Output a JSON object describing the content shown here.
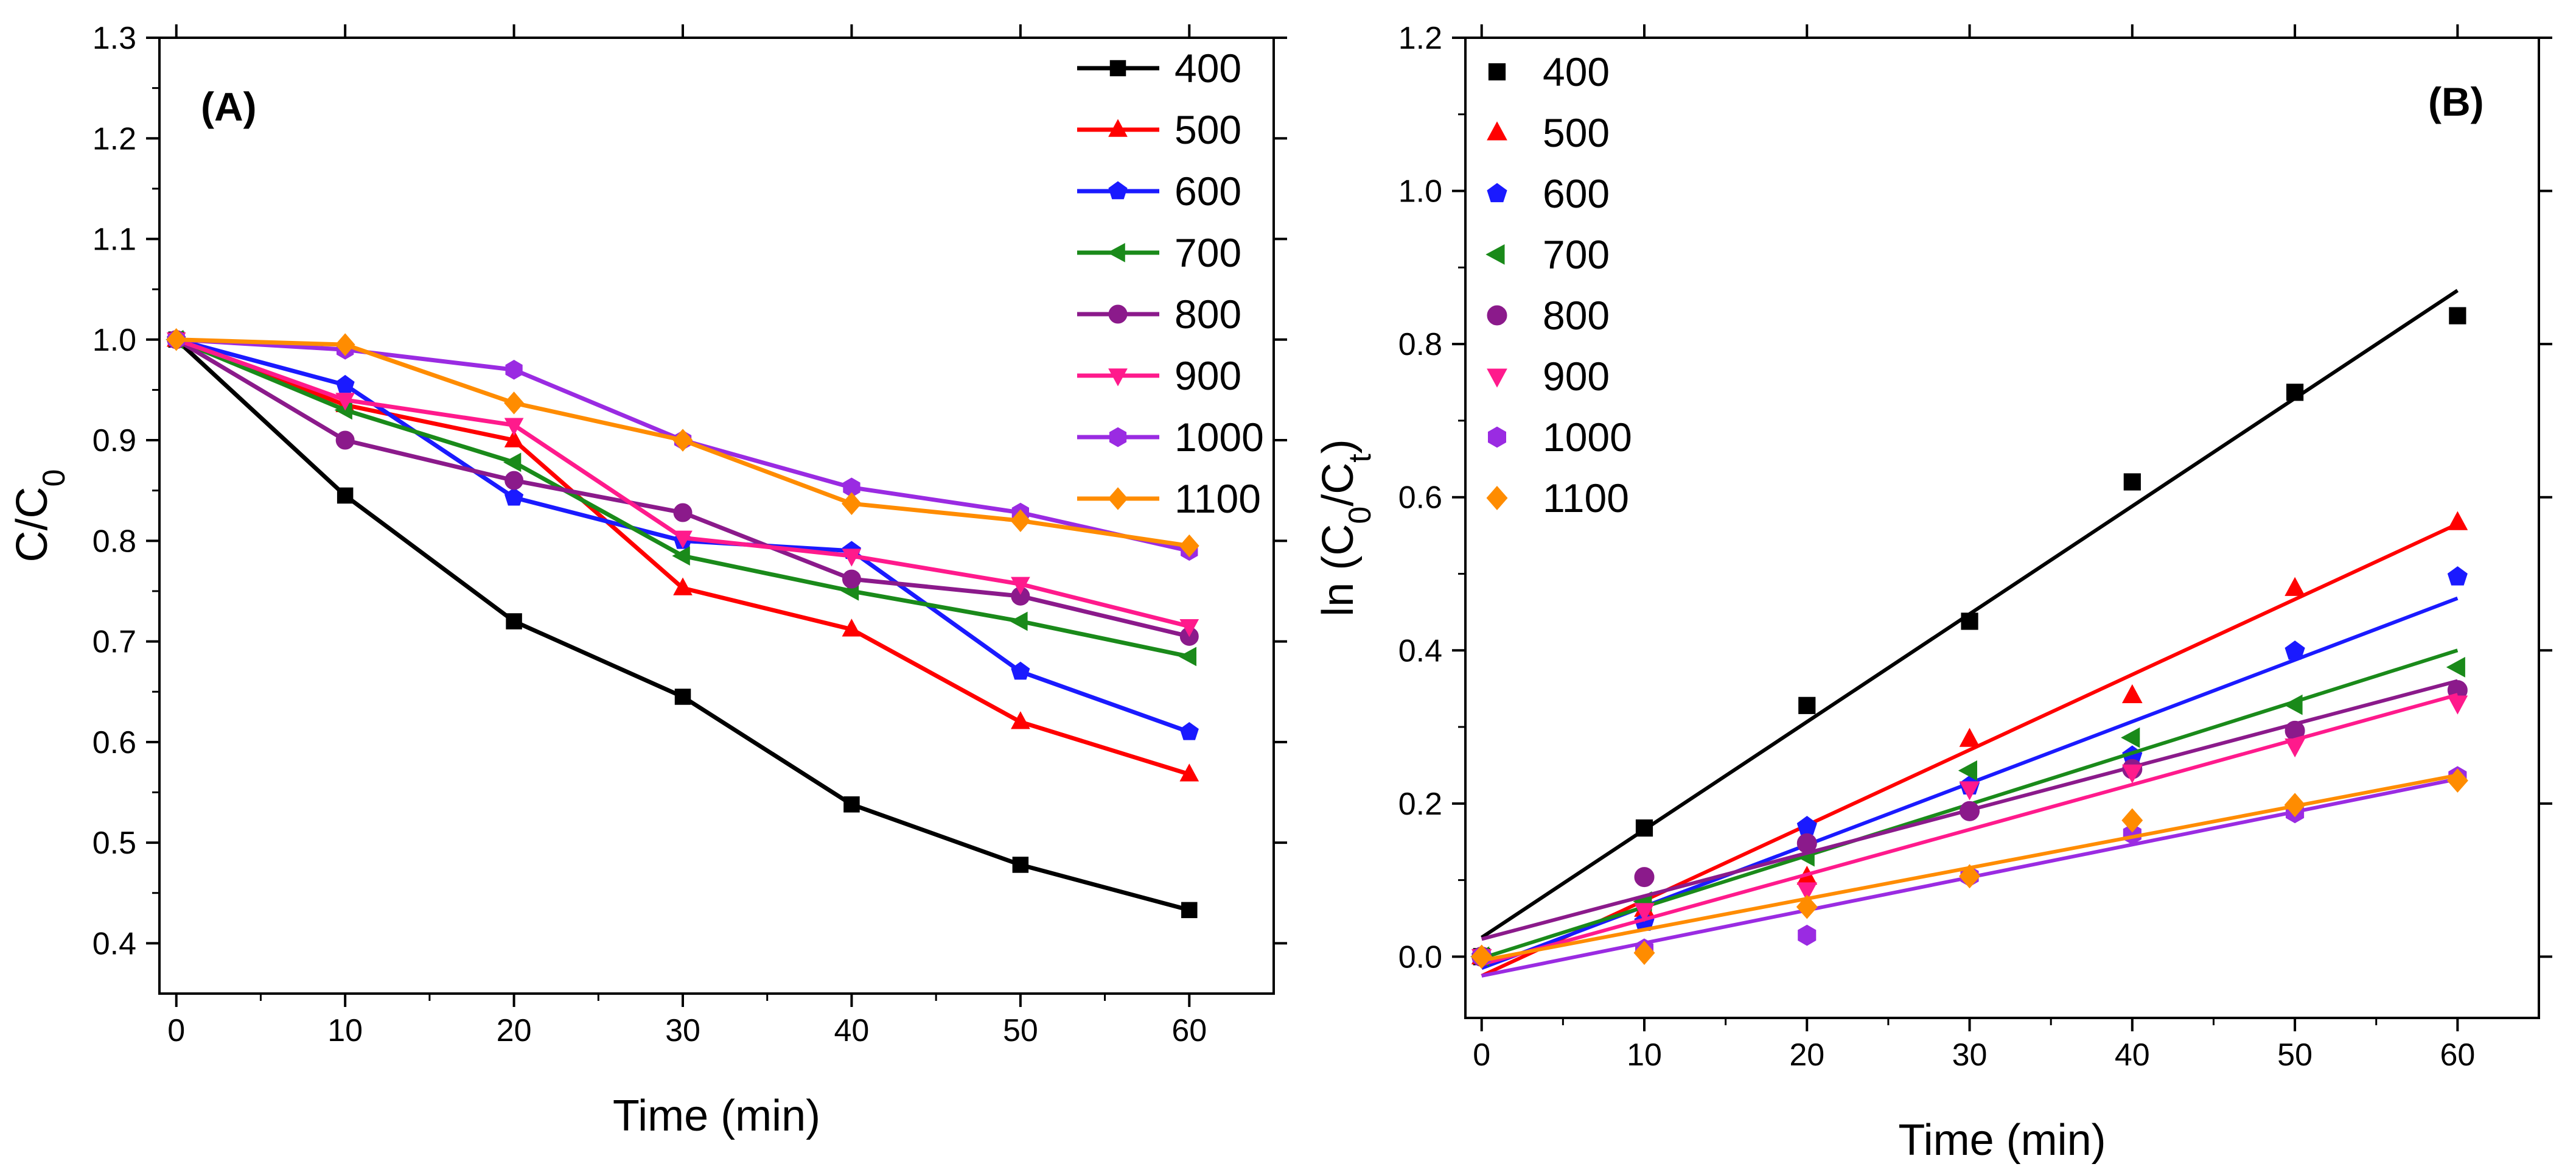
{
  "figure": {
    "description_free": true
  },
  "chart_data": [
    {
      "panel_label": "(A)",
      "type": "line",
      "xlabel": "Time (min)",
      "ylabel_main": "C/C",
      "ylabel_sub": "0",
      "xlim": [
        -1,
        65
      ],
      "ylim": [
        0.35,
        1.3
      ],
      "xticks": [
        0,
        10,
        20,
        30,
        40,
        50,
        60
      ],
      "yticks": [
        0.4,
        0.5,
        0.6,
        0.7,
        0.8,
        0.9,
        1.0,
        1.1,
        1.2,
        1.3
      ],
      "xtick_labels": [
        "0",
        "10",
        "20",
        "30",
        "40",
        "50",
        "60"
      ],
      "ytick_labels": [
        "0.4",
        "0.5",
        "0.6",
        "0.7",
        "0.8",
        "0.9",
        "1.0",
        "1.1",
        "1.2",
        "1.3"
      ],
      "x": [
        0,
        10,
        20,
        30,
        40,
        50,
        60
      ],
      "legend_position": "top-right",
      "series": [
        {
          "name": "400",
          "color": "#000000",
          "marker": "square",
          "values": [
            1.0,
            0.845,
            0.72,
            0.645,
            0.538,
            0.478,
            0.433
          ]
        },
        {
          "name": "500",
          "color": "#ff0000",
          "marker": "triangle-up",
          "values": [
            1.0,
            0.935,
            0.9,
            0.753,
            0.712,
            0.62,
            0.568
          ]
        },
        {
          "name": "600",
          "color": "#1a1aff",
          "marker": "pentagon",
          "values": [
            1.0,
            0.955,
            0.843,
            0.8,
            0.79,
            0.67,
            0.61
          ]
        },
        {
          "name": "700",
          "color": "#1a8a1a",
          "marker": "triangle-left",
          "values": [
            1.0,
            0.93,
            0.878,
            0.785,
            0.75,
            0.72,
            0.685
          ]
        },
        {
          "name": "800",
          "color": "#8b1a8b",
          "marker": "circle",
          "values": [
            1.0,
            0.9,
            0.86,
            0.828,
            0.762,
            0.745,
            0.705
          ]
        },
        {
          "name": "900",
          "color": "#ff1a8c",
          "marker": "triangle-down",
          "values": [
            1.0,
            0.94,
            0.915,
            0.803,
            0.785,
            0.757,
            0.715
          ]
        },
        {
          "name": "1000",
          "color": "#9a2be2",
          "marker": "hexagon",
          "values": [
            1.0,
            0.99,
            0.97,
            0.9,
            0.853,
            0.828,
            0.79
          ]
        },
        {
          "name": "1100",
          "color": "#ff8c00",
          "marker": "diamond",
          "values": [
            1.0,
            0.995,
            0.937,
            0.9,
            0.837,
            0.82,
            0.795
          ]
        }
      ]
    },
    {
      "panel_label": "(B)",
      "type": "scatter",
      "xlabel": "Time (min)",
      "ylabel_prefix": "ln (C",
      "ylabel_sub1": "0",
      "ylabel_mid": "/C",
      "ylabel_sub2": "t",
      "ylabel_suffix": ")",
      "xlim": [
        -1,
        65
      ],
      "ylim": [
        -0.08,
        1.2
      ],
      "xticks": [
        0,
        10,
        20,
        30,
        40,
        50,
        60
      ],
      "yticks": [
        0.0,
        0.2,
        0.4,
        0.6,
        0.8,
        1.0,
        1.2
      ],
      "xtick_labels": [
        "0",
        "10",
        "20",
        "30",
        "40",
        "50",
        "60"
      ],
      "ytick_labels": [
        "0.0",
        "0.2",
        "0.4",
        "0.6",
        "0.8",
        "1.0",
        "1.2"
      ],
      "x": [
        0,
        10,
        20,
        30,
        40,
        50,
        60
      ],
      "legend_position": "top-left",
      "fit": "linear",
      "series": [
        {
          "name": "400",
          "color": "#000000",
          "marker": "square",
          "values": [
            0.0,
            0.168,
            0.328,
            0.438,
            0.62,
            0.737,
            0.837
          ],
          "fit_line": [
            0.025,
            0.87
          ]
        },
        {
          "name": "500",
          "color": "#ff0000",
          "marker": "triangle-up",
          "values": [
            0.0,
            0.062,
            0.104,
            0.284,
            0.341,
            0.481,
            0.567
          ],
          "fit_line": [
            -0.025,
            0.565
          ]
        },
        {
          "name": "600",
          "color": "#1a1aff",
          "marker": "pentagon",
          "values": [
            0.0,
            0.045,
            0.17,
            0.223,
            0.262,
            0.399,
            0.496
          ],
          "fit_line": [
            -0.015,
            0.468
          ]
        },
        {
          "name": "700",
          "color": "#1a8a1a",
          "marker": "triangle-left",
          "values": [
            0.0,
            0.072,
            0.131,
            0.243,
            0.286,
            0.329,
            0.378
          ],
          "fit_line": [
            -0.002,
            0.4
          ]
        },
        {
          "name": "800",
          "color": "#8b1a8b",
          "marker": "circle",
          "values": [
            0.0,
            0.104,
            0.148,
            0.19,
            0.245,
            0.295,
            0.348
          ],
          "fit_line": [
            0.023,
            0.36
          ]
        },
        {
          "name": "900",
          "color": "#ff1a8c",
          "marker": "triangle-down",
          "values": [
            0.0,
            0.06,
            0.087,
            0.219,
            0.241,
            0.275,
            0.331
          ],
          "fit_line": [
            -0.01,
            0.342
          ]
        },
        {
          "name": "1000",
          "color": "#9a2be2",
          "marker": "hexagon",
          "values": [
            0.0,
            0.01,
            0.028,
            0.105,
            0.16,
            0.188,
            0.235
          ],
          "fit_line": [
            -0.025,
            0.232
          ]
        },
        {
          "name": "1100",
          "color": "#ff8c00",
          "marker": "diamond",
          "values": [
            0.0,
            0.005,
            0.065,
            0.105,
            0.178,
            0.198,
            0.23
          ],
          "fit_line": [
            -0.005,
            0.237
          ]
        }
      ]
    }
  ]
}
